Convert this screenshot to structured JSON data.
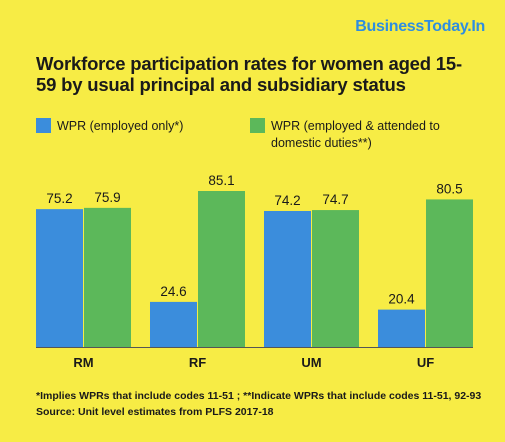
{
  "brand": "BusinessToday.In",
  "chart_data": {
    "type": "bar",
    "title": "Workforce participation rates for women aged 15-59 by usual principal and subsidiary status",
    "categories": [
      "RM",
      "RF",
      "UM",
      "UF"
    ],
    "series": [
      {
        "name": "WPR (employed only*)",
        "values": [
          75.2,
          24.6,
          74.2,
          20.4
        ],
        "color": "#3b8ddc"
      },
      {
        "name": "WPR (employed & attended to domestic duties**)",
        "values": [
          75.9,
          85.1,
          74.7,
          80.5
        ],
        "color": "#5cb85a"
      }
    ],
    "legend_lines": [
      [
        "WPR (employed only*)"
      ],
      [
        "WPR (employed & attended to",
        "domestic duties**)"
      ]
    ],
    "ylim": [
      0,
      85.1
    ],
    "grid": false,
    "legend_position": "top-left"
  },
  "footnote": {
    "line1": "*Implies WPRs that include codes 11-51 ; **Indicate WPRs that include codes 11-51, 92-93",
    "line2": "Source: Unit level estimates from PLFS 2017-18"
  }
}
